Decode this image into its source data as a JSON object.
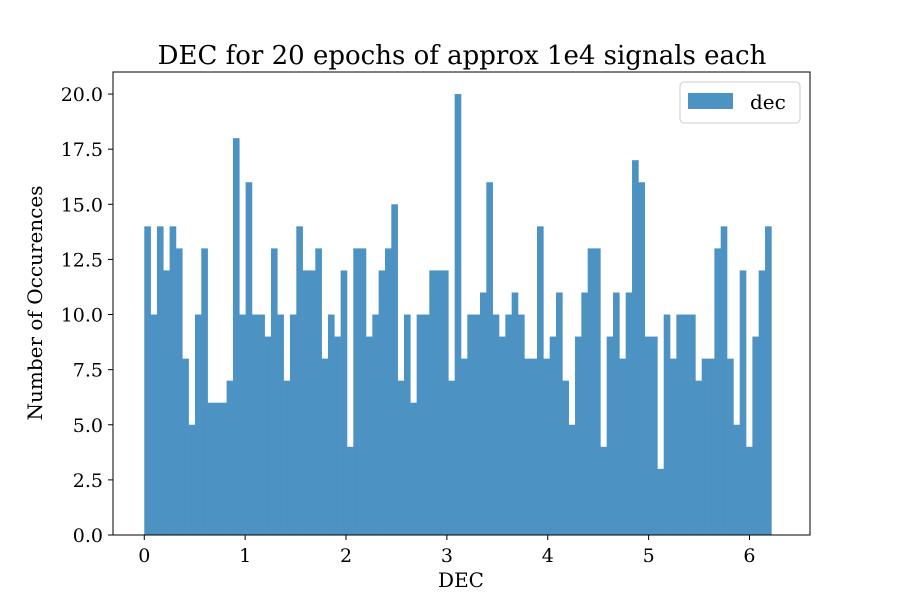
{
  "chart_data": {
    "type": "bar",
    "title": "DEC for 20 epochs of approx 1e4 signals each",
    "xlabel": "DEC",
    "ylabel": "Number of Occurences",
    "xlim": [
      -0.31,
      6.6
    ],
    "ylim": [
      0,
      21
    ],
    "bin_start": 0,
    "bin_width": 0.0628,
    "xticks": [
      0,
      1,
      2,
      3,
      4,
      5,
      6
    ],
    "xtick_labels": [
      "0",
      "1",
      "2",
      "3",
      "4",
      "5",
      "6"
    ],
    "yticks": [
      0,
      2.5,
      5,
      7.5,
      10,
      12.5,
      15,
      17.5,
      20
    ],
    "ytick_labels": [
      "0.0",
      "2.5",
      "5.0",
      "7.5",
      "10.0",
      "12.5",
      "15.0",
      "17.5",
      "20.0"
    ],
    "grid": false,
    "legend_position": "top-right",
    "series": [
      {
        "name": "dec",
        "color": "#4c92c3",
        "values": [
          14,
          10,
          14,
          12,
          14,
          13,
          8,
          5,
          10,
          13,
          6,
          6,
          6,
          7,
          18,
          10,
          16,
          10,
          10,
          9,
          13,
          10,
          7,
          10,
          14,
          12,
          12,
          13,
          8,
          10,
          9,
          12,
          4,
          13,
          13,
          9,
          10,
          12,
          13,
          15,
          7,
          10,
          6,
          10,
          10,
          12,
          12,
          12,
          7,
          20,
          8,
          10,
          10,
          11,
          16,
          10,
          9,
          10,
          11,
          10,
          8,
          8,
          14,
          8,
          9,
          11,
          7,
          5,
          9,
          11,
          13,
          13,
          4,
          9,
          11,
          8,
          11,
          17,
          16,
          9,
          9,
          3,
          10,
          8,
          10,
          10,
          10,
          7,
          8,
          8,
          13,
          14,
          8,
          5,
          12,
          4,
          9,
          12,
          14
        ]
      }
    ]
  }
}
